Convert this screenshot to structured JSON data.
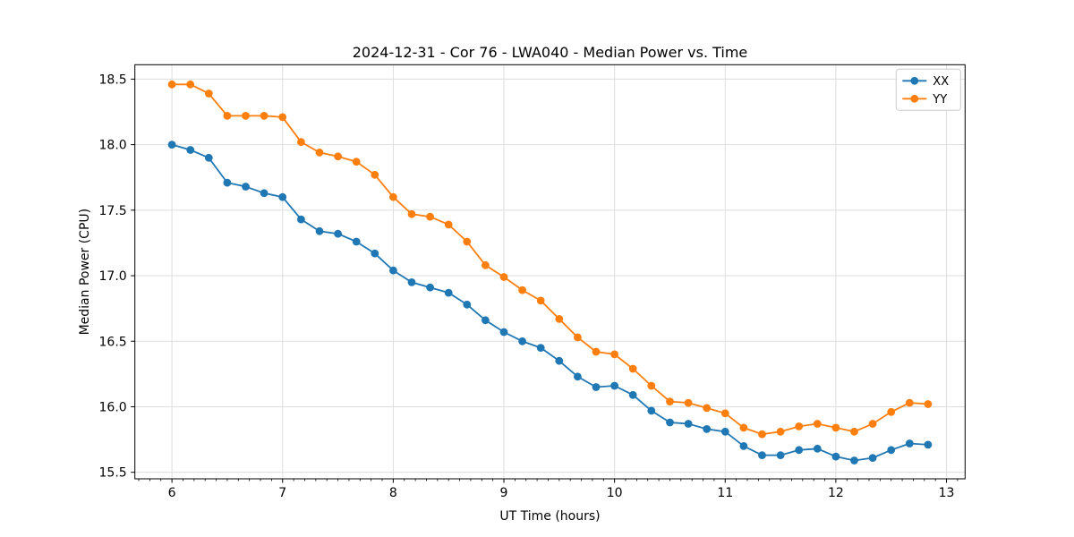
{
  "figure": {
    "title": "2024-12-31 - Cor 76 - LWA040 - Median Power vs. Time"
  },
  "chart_data": {
    "type": "line",
    "title": "2024-12-31 - Cor 76 - LWA040 - Median Power vs. Time",
    "xlabel": "UT Time (hours)",
    "ylabel": "Median Power (CPU)",
    "xlim": [
      5.665,
      13.168
    ],
    "ylim": [
      15.45,
      18.61
    ],
    "xticks": [
      6,
      7,
      8,
      9,
      10,
      11,
      12,
      13
    ],
    "xticklabels": [
      "6",
      "7",
      "8",
      "9",
      "10",
      "11",
      "12",
      "13"
    ],
    "yticks": [
      15.5,
      16.0,
      16.5,
      17.0,
      17.5,
      18.0,
      18.5
    ],
    "yticklabels": [
      "15.5",
      "16.0",
      "16.5",
      "17.0",
      "17.5",
      "18.0",
      "18.5"
    ],
    "x_minor_tick_step": 0.1,
    "grid": true,
    "legend": {
      "position": "upper right"
    },
    "colors": {
      "grid": "#dedede",
      "spine": "#000000",
      "legend_border": "#cccccc",
      "legend_fill": "#ffffff"
    },
    "x": [
      6.0,
      6.1667,
      6.3333,
      6.5,
      6.6667,
      6.8333,
      7.0,
      7.1667,
      7.3333,
      7.5,
      7.6667,
      7.8333,
      8.0,
      8.1667,
      8.3333,
      8.5,
      8.6667,
      8.8333,
      9.0,
      9.1667,
      9.3333,
      9.5,
      9.6667,
      9.8333,
      10.0,
      10.1667,
      10.3333,
      10.5,
      10.6667,
      10.8333,
      11.0,
      11.1667,
      11.3333,
      11.5,
      11.6667,
      11.8333,
      12.0,
      12.1667,
      12.3333,
      12.5,
      12.6667,
      12.8333
    ],
    "series": [
      {
        "name": "XX",
        "color": "#1f77b4",
        "marker": "circle",
        "values": [
          18.0,
          17.96,
          17.9,
          17.71,
          17.68,
          17.63,
          17.6,
          17.43,
          17.34,
          17.32,
          17.26,
          17.17,
          17.04,
          16.95,
          16.91,
          16.87,
          16.78,
          16.66,
          16.57,
          16.5,
          16.45,
          16.35,
          16.23,
          16.15,
          16.16,
          16.09,
          15.97,
          15.88,
          15.87,
          15.83,
          15.81,
          15.7,
          15.63,
          15.63,
          15.67,
          15.68,
          15.62,
          15.59,
          15.61,
          15.67,
          15.72,
          15.71
        ]
      },
      {
        "name": "YY",
        "color": "#ff7f0e",
        "marker": "circle",
        "values": [
          18.46,
          18.46,
          18.39,
          18.22,
          18.22,
          18.22,
          18.21,
          18.02,
          17.94,
          17.91,
          17.87,
          17.77,
          17.6,
          17.47,
          17.45,
          17.39,
          17.26,
          17.08,
          16.99,
          16.89,
          16.81,
          16.67,
          16.53,
          16.42,
          16.4,
          16.29,
          16.16,
          16.04,
          16.03,
          15.99,
          15.95,
          15.84,
          15.79,
          15.81,
          15.85,
          15.87,
          15.84,
          15.81,
          15.87,
          15.96,
          16.03,
          16.02
        ]
      }
    ]
  }
}
